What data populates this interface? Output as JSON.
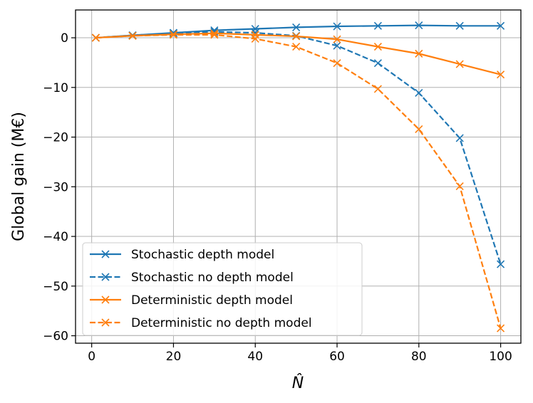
{
  "chart_data": {
    "type": "line",
    "title": "",
    "xlabel": "N̂",
    "ylabel": "Global gain (M€)",
    "xlim": [
      -3.95,
      104.95
    ],
    "ylim": [
      -61.5,
      5.6
    ],
    "xticks": [
      0,
      20,
      40,
      60,
      80,
      100
    ],
    "yticks": [
      0,
      -10,
      -20,
      -30,
      -40,
      -50,
      -60
    ],
    "xtick_labels": [
      "0",
      "20",
      "40",
      "60",
      "80",
      "100"
    ],
    "ytick_labels": [
      "0",
      "−10",
      "−20",
      "−30",
      "−40",
      "−50",
      "−60"
    ],
    "grid": true,
    "legend_position": "lower-left",
    "x": [
      1,
      10,
      20,
      30,
      40,
      50,
      60,
      70,
      80,
      90,
      100
    ],
    "series": [
      {
        "name": "Stochastic depth model",
        "color": "#1f77b4",
        "linestyle": "solid",
        "marker": "x",
        "values": [
          0.0,
          0.5,
          1.0,
          1.5,
          1.8,
          2.1,
          2.3,
          2.4,
          2.5,
          2.4,
          2.4
        ]
      },
      {
        "name": "Stochastic no depth model",
        "color": "#1f77b4",
        "linestyle": "dashed",
        "marker": "x",
        "values": [
          0.0,
          0.5,
          0.9,
          1.2,
          1.0,
          0.4,
          -1.6,
          -5.1,
          -11.1,
          -20.2,
          -45.6
        ]
      },
      {
        "name": "Deterministic depth model",
        "color": "#ff7f0e",
        "linestyle": "solid",
        "marker": "x",
        "values": [
          0.0,
          0.4,
          0.7,
          0.9,
          0.6,
          0.3,
          -0.3,
          -1.8,
          -3.2,
          -5.3,
          -7.4
        ]
      },
      {
        "name": "Deterministic no depth model",
        "color": "#ff7f0e",
        "linestyle": "dashed",
        "marker": "x",
        "values": [
          0.0,
          0.4,
          0.6,
          0.6,
          -0.2,
          -1.8,
          -5.1,
          -10.3,
          -18.4,
          -29.9,
          -58.5
        ]
      }
    ]
  }
}
